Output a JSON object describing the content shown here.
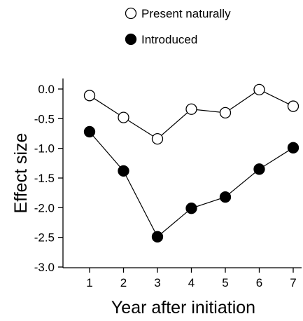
{
  "chart_data": {
    "type": "line",
    "title": "",
    "xlabel": "Year after initiation",
    "ylabel": "Effect size",
    "x": [
      1,
      2,
      3,
      4,
      5,
      6,
      7
    ],
    "xticks": [
      "1",
      "2",
      "3",
      "4",
      "5",
      "6",
      "7"
    ],
    "ylim": [
      -3.0,
      0.0
    ],
    "yticks": [
      "0.0",
      "-0.5",
      "-1.0",
      "-1.5",
      "-2.0",
      "-2.5",
      "-3.0"
    ],
    "grid": false,
    "legend_position": "top",
    "series": [
      {
        "name": "Present naturally",
        "marker": "open-circle",
        "color": "#000000",
        "fill": "#ffffff",
        "values": [
          -0.11,
          -0.48,
          -0.84,
          -0.34,
          -0.4,
          -0.01,
          -0.29
        ]
      },
      {
        "name": "Introduced",
        "marker": "filled-circle",
        "color": "#000000",
        "fill": "#000000",
        "values": [
          -0.72,
          -1.38,
          -2.49,
          -2.01,
          -1.82,
          -1.35,
          -0.99
        ]
      }
    ]
  }
}
